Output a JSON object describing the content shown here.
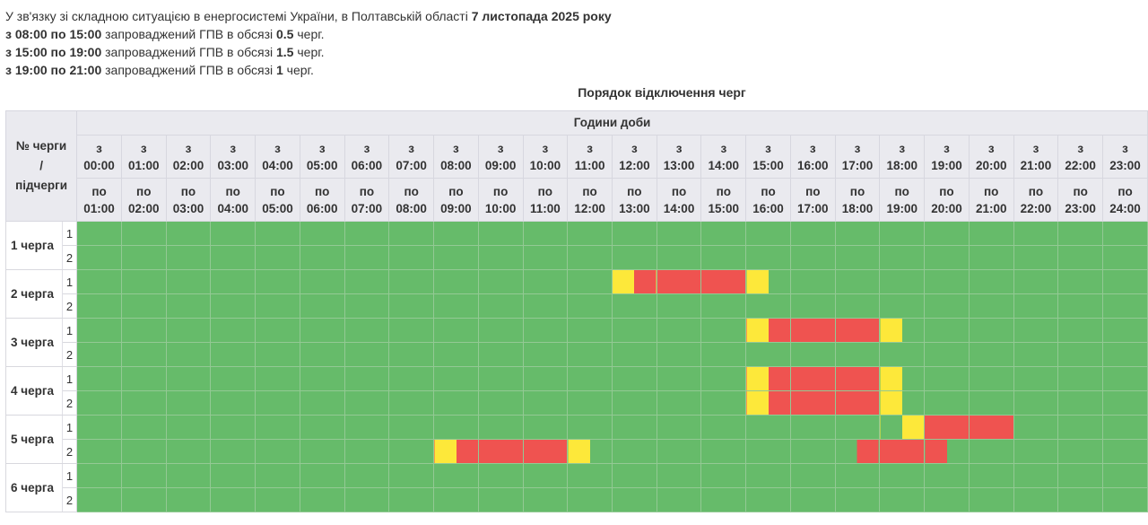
{
  "intro": {
    "line1": {
      "text": "У зв'язку зі складною ситуацією в енергосистемі України, в Полтавській області ",
      "date": "7 листопада 2025 року"
    },
    "periods": [
      {
        "range": "з 08:00 по 15:00",
        "text": " запроваджений ГПВ в обсязі ",
        "amount": "0.5",
        "unit": " черг."
      },
      {
        "range": "з 15:00 по 19:00",
        "text": " запроваджений ГПВ в обсязі ",
        "amount": "1.5",
        "unit": " черг."
      },
      {
        "range": "з 19:00 по 21:00",
        "text": " запроваджений ГПВ в обсязі ",
        "amount": "1",
        "unit": " черг."
      }
    ]
  },
  "table": {
    "caption": "Порядок відключення черг",
    "queue_header": [
      "№ черги",
      "/",
      "підчерги"
    ],
    "hours_title": "Години доби",
    "from_prefix": "з",
    "to_prefix": "по",
    "from_times": [
      "00:00",
      "01:00",
      "02:00",
      "03:00",
      "04:00",
      "05:00",
      "06:00",
      "07:00",
      "08:00",
      "09:00",
      "10:00",
      "11:00",
      "12:00",
      "13:00",
      "14:00",
      "15:00",
      "16:00",
      "17:00",
      "18:00",
      "19:00",
      "20:00",
      "21:00",
      "22:00",
      "23:00"
    ],
    "to_times": [
      "01:00",
      "02:00",
      "03:00",
      "04:00",
      "05:00",
      "06:00",
      "07:00",
      "08:00",
      "09:00",
      "10:00",
      "11:00",
      "12:00",
      "13:00",
      "14:00",
      "15:00",
      "16:00",
      "17:00",
      "18:00",
      "19:00",
      "20:00",
      "21:00",
      "22:00",
      "23:00",
      "24:00"
    ],
    "colors": {
      "on": "#66bb6a",
      "off": "#ef5350",
      "maybe": "#fde83a"
    },
    "legend_codes": {
      "0": "on",
      "1": "off",
      "2": "maybe"
    },
    "queues": [
      {
        "label": "1 черга",
        "subqueues": [
          {
            "num": "1",
            "slots": "000000000000000000000000000000000000000000000000"
          },
          {
            "num": "2",
            "slots": "000000000000000000000000000000000000000000000000"
          }
        ]
      },
      {
        "label": "2 черга",
        "subqueues": [
          {
            "num": "1",
            "slots": "000000000000000000000000211111200000000000000000"
          },
          {
            "num": "2",
            "slots": "000000000000000000000000000000000000000000000000"
          }
        ]
      },
      {
        "label": "3 черга",
        "subqueues": [
          {
            "num": "1",
            "slots": "000000000000000000000000000000211111200000000000"
          },
          {
            "num": "2",
            "slots": "000000000000000000000000000000000000000000000000"
          }
        ]
      },
      {
        "label": "4 черга",
        "subqueues": [
          {
            "num": "1",
            "slots": "000000000000000000000000000000211111200000000000"
          },
          {
            "num": "2",
            "slots": "000000000000000000000000000000211111200000000000"
          }
        ]
      },
      {
        "label": "5 черга",
        "subqueues": [
          {
            "num": "1",
            "slots": "000000000000000000000000000000000000021111000000"
          },
          {
            "num": "2",
            "slots": "000000000000000021111120000000000001111000000000"
          }
        ]
      },
      {
        "label": "6 черга",
        "subqueues": [
          {
            "num": "1",
            "slots": "000000000000000000000000000000000000000000000000"
          },
          {
            "num": "2",
            "slots": "000000000000000000000000000000000000000000000000"
          }
        ]
      }
    ]
  }
}
